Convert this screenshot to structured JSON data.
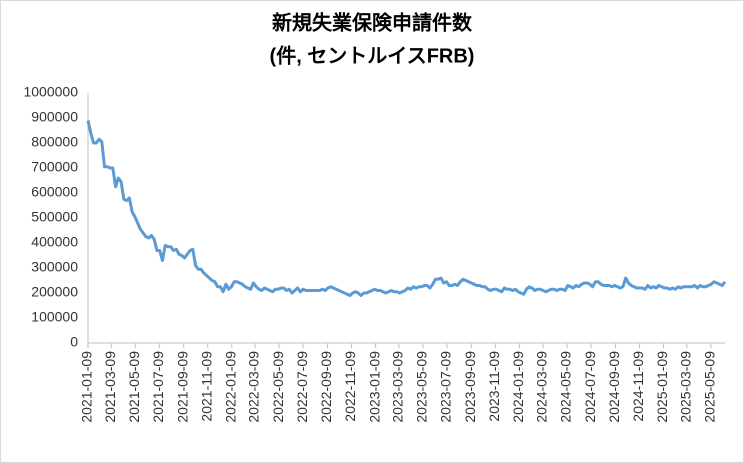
{
  "chart_data": {
    "type": "line",
    "title": "新規失業保険申請件数",
    "subtitle": "(件, セントルイスFRB)",
    "x": [
      "2021-01-09",
      "2021-01-16",
      "2021-01-23",
      "2021-01-30",
      "2021-02-06",
      "2021-02-13",
      "2021-02-20",
      "2021-02-27",
      "2021-03-06",
      "2021-03-13",
      "2021-03-20",
      "2021-03-27",
      "2021-04-03",
      "2021-04-10",
      "2021-04-17",
      "2021-04-24",
      "2021-05-01",
      "2021-05-08",
      "2021-05-15",
      "2021-05-22",
      "2021-05-29",
      "2021-06-05",
      "2021-06-12",
      "2021-06-19",
      "2021-06-26",
      "2021-07-03",
      "2021-07-10",
      "2021-07-17",
      "2021-07-24",
      "2021-07-31",
      "2021-08-07",
      "2021-08-14",
      "2021-08-21",
      "2021-08-28",
      "2021-09-04",
      "2021-09-11",
      "2021-09-18",
      "2021-09-25",
      "2021-10-02",
      "2021-10-09",
      "2021-10-16",
      "2021-10-23",
      "2021-10-30",
      "2021-11-06",
      "2021-11-13",
      "2021-11-20",
      "2021-11-27",
      "2021-12-04",
      "2021-12-11",
      "2021-12-18",
      "2021-12-25",
      "2022-01-01",
      "2022-01-08",
      "2022-01-15",
      "2022-01-22",
      "2022-01-29",
      "2022-02-05",
      "2022-02-12",
      "2022-02-19",
      "2022-02-26",
      "2022-03-05",
      "2022-03-12",
      "2022-03-19",
      "2022-03-26",
      "2022-04-02",
      "2022-04-09",
      "2022-04-16",
      "2022-04-23",
      "2022-04-30",
      "2022-05-07",
      "2022-05-14",
      "2022-05-21",
      "2022-05-28",
      "2022-06-04",
      "2022-06-11",
      "2022-06-18",
      "2022-06-25",
      "2022-07-02",
      "2022-07-09",
      "2022-07-16",
      "2022-07-23",
      "2022-07-30",
      "2022-08-06",
      "2022-08-13",
      "2022-08-20",
      "2022-08-27",
      "2022-09-03",
      "2022-09-10",
      "2022-09-17",
      "2022-09-24",
      "2022-10-01",
      "2022-10-08",
      "2022-10-15",
      "2022-10-22",
      "2022-10-29",
      "2022-11-05",
      "2022-11-12",
      "2022-11-19",
      "2022-11-26",
      "2022-12-03",
      "2022-12-10",
      "2022-12-17",
      "2022-12-24",
      "2022-12-31",
      "2023-01-07",
      "2023-01-14",
      "2023-01-21",
      "2023-01-28",
      "2023-02-04",
      "2023-02-11",
      "2023-02-18",
      "2023-02-25",
      "2023-03-04",
      "2023-03-11",
      "2023-03-18",
      "2023-03-25",
      "2023-04-01",
      "2023-04-08",
      "2023-04-15",
      "2023-04-22",
      "2023-04-29",
      "2023-05-06",
      "2023-05-13",
      "2023-05-20",
      "2023-05-27",
      "2023-06-03",
      "2023-06-10",
      "2023-06-17",
      "2023-06-24",
      "2023-07-01",
      "2023-07-08",
      "2023-07-15",
      "2023-07-22",
      "2023-07-29",
      "2023-08-05",
      "2023-08-12",
      "2023-08-19",
      "2023-08-26",
      "2023-09-02",
      "2023-09-09",
      "2023-09-16",
      "2023-09-23",
      "2023-09-30",
      "2023-10-07",
      "2023-10-14",
      "2023-10-21",
      "2023-10-28",
      "2023-11-04",
      "2023-11-11",
      "2023-11-18",
      "2023-11-25",
      "2023-12-02",
      "2023-12-09",
      "2023-12-16",
      "2023-12-23",
      "2023-12-30",
      "2024-01-06",
      "2024-01-13",
      "2024-01-20",
      "2024-01-27",
      "2024-02-03",
      "2024-02-10",
      "2024-02-17",
      "2024-02-24",
      "2024-03-02",
      "2024-03-09",
      "2024-03-16",
      "2024-03-23",
      "2024-03-30",
      "2024-04-06",
      "2024-04-13",
      "2024-04-20",
      "2024-04-27",
      "2024-05-04",
      "2024-05-11",
      "2024-05-18",
      "2024-05-25",
      "2024-06-01",
      "2024-06-08",
      "2024-06-15",
      "2024-06-22",
      "2024-06-29",
      "2024-07-06",
      "2024-07-13",
      "2024-07-20",
      "2024-07-27",
      "2024-08-03",
      "2024-08-10",
      "2024-08-17",
      "2024-08-24",
      "2024-08-31",
      "2024-09-07",
      "2024-09-14",
      "2024-09-21",
      "2024-09-28",
      "2024-10-05",
      "2024-10-12",
      "2024-10-19",
      "2024-10-26",
      "2024-11-02",
      "2024-11-09",
      "2024-11-16",
      "2024-11-23",
      "2024-11-30",
      "2024-12-07",
      "2024-12-14",
      "2024-12-21",
      "2024-12-28",
      "2025-01-04",
      "2025-01-11",
      "2025-01-18",
      "2025-01-25",
      "2025-02-01",
      "2025-02-08",
      "2025-02-15",
      "2025-02-22",
      "2025-03-01",
      "2025-03-08",
      "2025-03-15",
      "2025-03-22",
      "2025-03-29",
      "2025-04-05",
      "2025-04-12",
      "2025-04-19",
      "2025-04-26",
      "2025-05-03",
      "2025-05-10",
      "2025-05-17",
      "2025-05-24",
      "2025-05-31",
      "2025-06-07",
      "2025-06-14"
    ],
    "series": [
      {
        "color": "#5b9bd5",
        "values": [
          890000,
          840000,
          800000,
          800000,
          815000,
          805000,
          705000,
          705000,
          700000,
          700000,
          625000,
          660000,
          645000,
          575000,
          570000,
          580000,
          525000,
          505000,
          480000,
          455000,
          440000,
          425000,
          420000,
          430000,
          415000,
          370000,
          370000,
          330000,
          390000,
          385000,
          385000,
          370000,
          375000,
          355000,
          350000,
          340000,
          355000,
          370000,
          375000,
          310000,
          295000,
          295000,
          280000,
          270000,
          260000,
          250000,
          245000,
          225000,
          225000,
          205000,
          235000,
          215000,
          225000,
          245000,
          245000,
          240000,
          235000,
          225000,
          220000,
          215000,
          240000,
          225000,
          215000,
          210000,
          220000,
          215000,
          210000,
          205000,
          215000,
          215000,
          220000,
          220000,
          210000,
          215000,
          200000,
          210000,
          220000,
          205000,
          215000,
          210000,
          210000,
          210000,
          210000,
          210000,
          210000,
          215000,
          210000,
          220000,
          225000,
          220000,
          215000,
          210000,
          205000,
          200000,
          195000,
          190000,
          200000,
          205000,
          200000,
          190000,
          200000,
          200000,
          205000,
          210000,
          215000,
          210000,
          210000,
          205000,
          200000,
          205000,
          210000,
          205000,
          205000,
          200000,
          205000,
          210000,
          220000,
          215000,
          225000,
          220000,
          225000,
          225000,
          230000,
          230000,
          220000,
          235000,
          255000,
          255000,
          260000,
          240000,
          245000,
          230000,
          230000,
          235000,
          230000,
          245000,
          255000,
          250000,
          245000,
          240000,
          235000,
          230000,
          230000,
          225000,
          225000,
          215000,
          210000,
          215000,
          215000,
          210000,
          205000,
          220000,
          215000,
          215000,
          210000,
          215000,
          205000,
          200000,
          195000,
          215000,
          225000,
          220000,
          210000,
          215000,
          215000,
          210000,
          205000,
          210000,
          215000,
          215000,
          210000,
          215000,
          215000,
          210000,
          230000,
          225000,
          220000,
          230000,
          225000,
          235000,
          240000,
          240000,
          235000,
          225000,
          245000,
          245000,
          235000,
          230000,
          230000,
          230000,
          225000,
          230000,
          225000,
          220000,
          225000,
          260000,
          240000,
          230000,
          225000,
          220000,
          220000,
          220000,
          215000,
          230000,
          220000,
          225000,
          220000,
          230000,
          225000,
          220000,
          220000,
          215000,
          220000,
          215000,
          225000,
          220000,
          225000,
          225000,
          225000,
          225000,
          230000,
          220000,
          230000,
          225000,
          225000,
          230000,
          235000,
          245000,
          240000,
          235000,
          230000,
          245000
        ]
      }
    ],
    "xlim": [
      "2021-01-09",
      "2025-06-14"
    ],
    "xticks": [
      "2021-01-09",
      "2021-03-09",
      "2021-05-09",
      "2021-07-09",
      "2021-09-09",
      "2021-11-09",
      "2022-01-09",
      "2022-03-09",
      "2022-05-09",
      "2022-07-09",
      "2022-09-09",
      "2022-11-09",
      "2023-01-09",
      "2023-03-09",
      "2023-05-09",
      "2023-07-09",
      "2023-09-09",
      "2023-11-09",
      "2024-01-09",
      "2024-03-09",
      "2024-05-09",
      "2024-07-09",
      "2024-09-09",
      "2024-11-09",
      "2025-01-09",
      "2025-03-09",
      "2025-05-09"
    ],
    "ylim": [
      0,
      1000000
    ],
    "yticks": [
      0,
      100000,
      200000,
      300000,
      400000,
      500000,
      600000,
      700000,
      800000,
      900000,
      1000000
    ],
    "grid": false
  }
}
